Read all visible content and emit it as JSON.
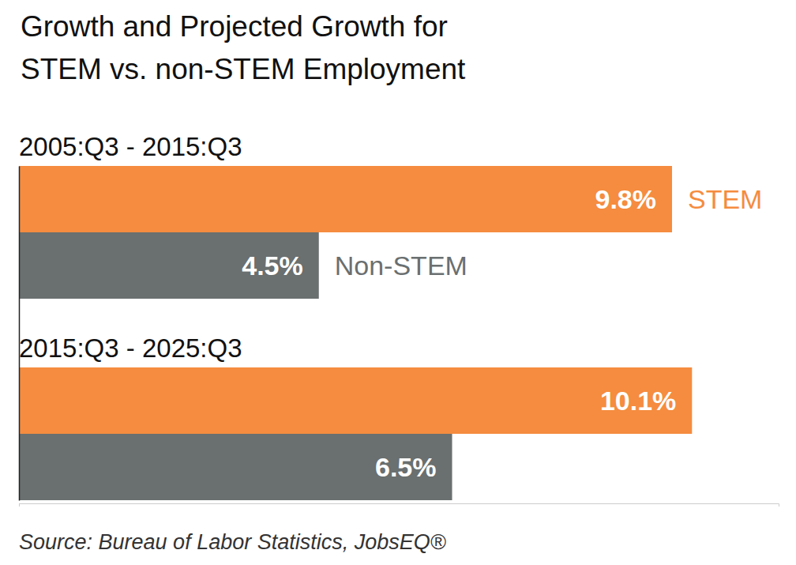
{
  "chart_data": {
    "type": "bar",
    "orientation": "horizontal",
    "title": [
      "Growth and Projected Growth for",
      "STEM vs. non-STEM Employment"
    ],
    "categories": [
      "2005:Q3 - 2015:Q3",
      "2015:Q3 - 2025:Q3"
    ],
    "series": [
      {
        "name": "STEM",
        "color": "#f58c3f",
        "values": [
          9.8,
          10.1
        ],
        "value_labels": [
          "9.8%",
          "10.1%"
        ]
      },
      {
        "name": "Non-STEM",
        "color": "#6a6f6f",
        "values": [
          4.5,
          6.5
        ],
        "value_labels": [
          "4.5%",
          "6.5%"
        ]
      }
    ],
    "xlim": [
      0,
      11.4
    ],
    "xticks": [
      0
    ],
    "tick_labels": false,
    "data_labels": true,
    "source": "Source: Bureau of Labor Statistics, JobsEQ®"
  }
}
